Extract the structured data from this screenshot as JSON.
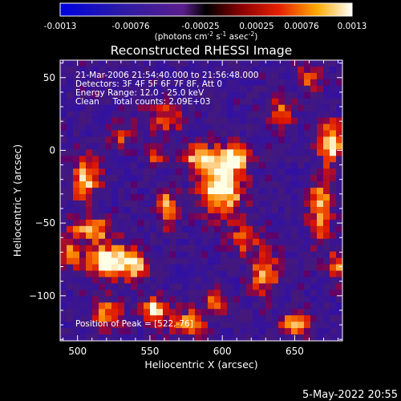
{
  "chart_data": {
    "type": "heatmap",
    "title": "Reconstructed RHESSI Image",
    "xlabel": "Heliocentric X (arcsec)",
    "ylabel": "Heliocentric Y (arcsec)",
    "xlim": [
      488,
      683
    ],
    "ylim": [
      -131,
      62
    ],
    "x_ticks": [
      500,
      550,
      600,
      650
    ],
    "y_ticks": [
      50,
      0,
      -50,
      -100
    ],
    "colorbar": {
      "vmin": -0.0013,
      "vmax": 0.0013,
      "ticks": [
        "-0.0013",
        "-0.00076",
        "-0.00025",
        "0.00025",
        "0.00076",
        "0.0013"
      ],
      "label_main": "(photons cm",
      "label_exp1": "-2",
      "label_mid": " s",
      "label_exp2": "-1",
      "label_tail": " asec",
      "label_exp3": "-2",
      "label_end": ")"
    },
    "annotations": [
      "21-Mar-2006 21:54:40.000 to 21:56:48.000",
      "Detectors: 3F 4F 5F 6F 7F 8F, Att 0",
      "Energy Range: 12.0 - 25.0 keV",
      "Clean     Total counts: 2.09E+03"
    ],
    "peak_label": "Position of Peak = [522,-76]",
    "peak": [
      522,
      -76
    ],
    "footer": "5-May-2022 20:55",
    "grid": false
  }
}
